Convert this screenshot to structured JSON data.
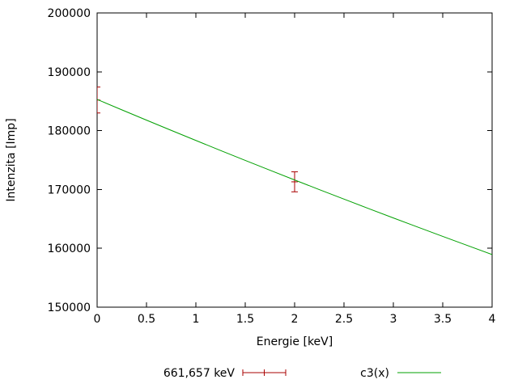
{
  "chart_data": {
    "type": "line",
    "title": "",
    "xlabel": "Energie [keV]",
    "ylabel": "Intenzita [Imp]",
    "xlim": [
      0,
      4
    ],
    "ylim": [
      150000,
      200000
    ],
    "grid": false,
    "legend_position": "bottom-center",
    "x_ticks": {
      "values": [
        0,
        0.5,
        1,
        1.5,
        2,
        2.5,
        3,
        3.5,
        4
      ],
      "labels": [
        "0",
        "0.5",
        "1",
        "1.5",
        "2",
        "2.5",
        "3",
        "3.5",
        "4"
      ]
    },
    "y_ticks": {
      "values": [
        150000,
        160000,
        170000,
        180000,
        190000,
        200000
      ],
      "labels": [
        "150000",
        "160000",
        "170000",
        "180000",
        "190000",
        "200000"
      ]
    },
    "series": [
      {
        "name": "661,657 keV",
        "type": "errorbars",
        "color": "#aa0000",
        "points": [
          {
            "x": 0,
            "y": 185200,
            "err": 2200
          },
          {
            "x": 2,
            "y": 171300,
            "err": 1700
          }
        ]
      },
      {
        "name": "c3(x)",
        "type": "line",
        "color": "#00a000",
        "x": [
          0,
          0.25,
          0.5,
          0.75,
          1,
          1.25,
          1.5,
          1.75,
          2,
          2.25,
          2.5,
          2.75,
          3,
          3.25,
          3.5,
          3.75,
          4
        ],
        "y": [
          185300,
          183532,
          181781,
          180047,
          178329,
          176626,
          174941,
          173272,
          171619,
          169981,
          168360,
          166753,
          165162,
          163586,
          162026,
          160479,
          158948
        ]
      }
    ]
  }
}
